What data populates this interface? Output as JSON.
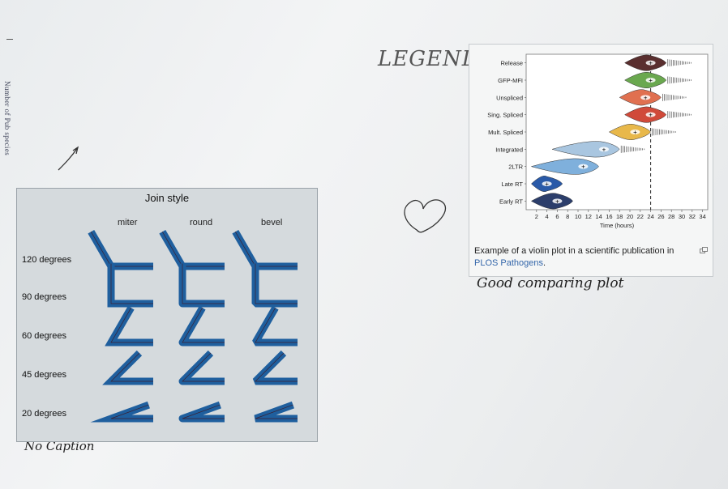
{
  "page_edge_text": "Number of Pub species",
  "handwritten": {
    "legend": "LEGEND",
    "good_comparing": "Good comparing plot",
    "no_caption": "No Caption"
  },
  "join_figure": {
    "title": "Join style",
    "columns": [
      "miter",
      "round",
      "bevel"
    ],
    "rows": [
      "120 degrees",
      "90 degrees",
      "60 degrees",
      "45 degrees",
      "20 degrees"
    ],
    "row_angles_deg": [
      120,
      90,
      60,
      45,
      20
    ],
    "line_color": "#1f5f9e",
    "inner_line_color": "#3c1f2f"
  },
  "violin_figure": {
    "caption_text": "Example of a violin plot in a scientific publication in ",
    "caption_link": "PLOS Pathogens",
    "caption_end": ".",
    "chart_data": {
      "type": "violin",
      "categories": [
        "Release",
        "GFP-MFI",
        "Unspliced",
        "Sing. Spliced",
        "Mult. Spliced",
        "Integrated",
        "2LTR",
        "Late RT",
        "Early RT"
      ],
      "colors": [
        "#5a2f2f",
        "#6aa84f",
        "#e07050",
        "#d04a3a",
        "#e8b84a",
        "#a9c6e0",
        "#7fb0dc",
        "#2a5aa8",
        "#2c3e6b"
      ],
      "medians_hours": [
        24,
        24,
        23,
        24,
        21,
        15,
        11,
        4,
        6
      ],
      "x_label": "Time (hours)",
      "x_ticks": [
        2,
        4,
        6,
        8,
        10,
        12,
        14,
        16,
        18,
        20,
        22,
        24,
        26,
        28,
        30,
        32,
        34
      ],
      "xlim": [
        0,
        35
      ],
      "reference_line_hours": 24
    }
  }
}
